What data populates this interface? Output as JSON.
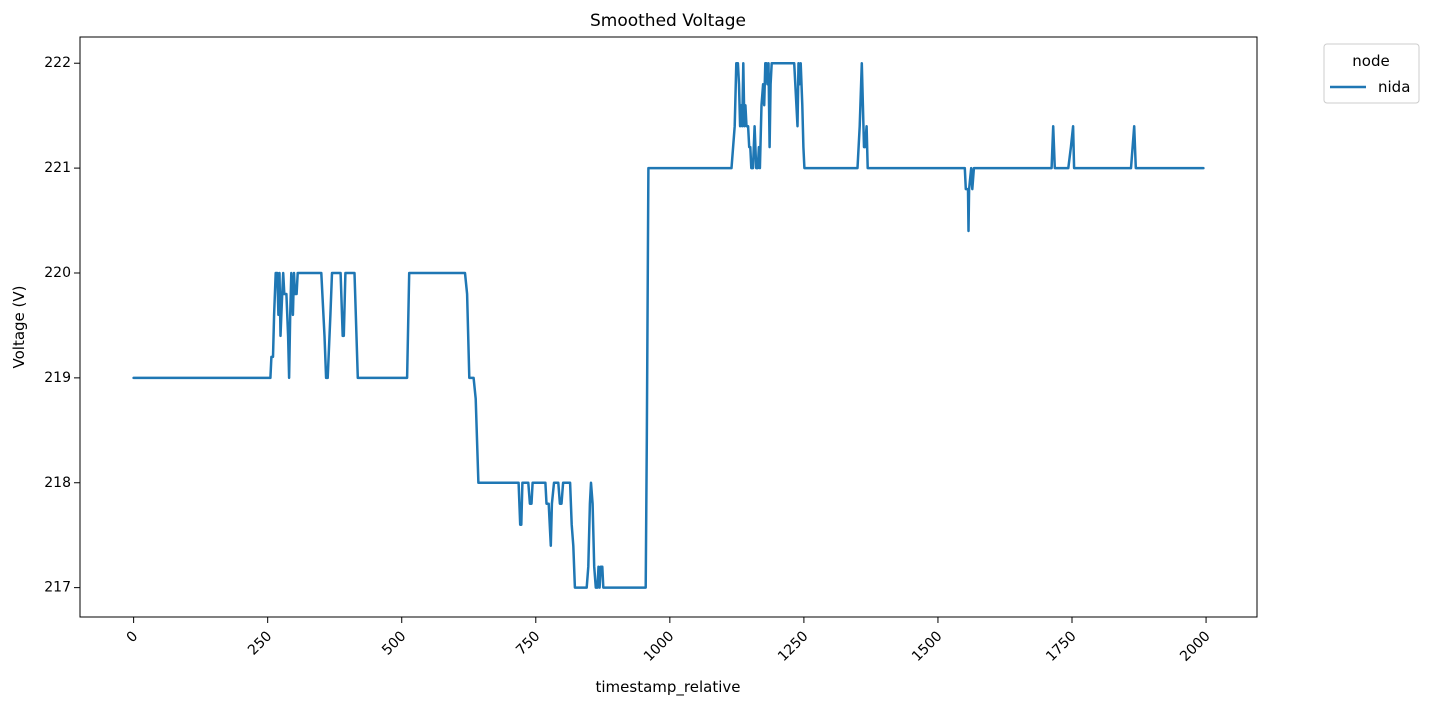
{
  "chart_data": {
    "type": "line",
    "title": "Smoothed Voltage",
    "xlabel": "timestamp_relative",
    "ylabel": "Voltage (V)",
    "xlim": [
      -100,
      2095
    ],
    "ylim": [
      216.72,
      222.25
    ],
    "xticks": [
      0,
      250,
      500,
      750,
      1000,
      1250,
      1500,
      1750,
      2000
    ],
    "yticks": [
      217,
      218,
      219,
      220,
      221,
      222
    ],
    "grid": false,
    "legend": {
      "title": "node",
      "placement": "outside-top-right"
    },
    "series": [
      {
        "name": "nida",
        "color": "#1f77b4",
        "points": [
          [
            0,
            219
          ],
          [
            255,
            219
          ],
          [
            257,
            219.2
          ],
          [
            260,
            219.2
          ],
          [
            262,
            219.6
          ],
          [
            265,
            220
          ],
          [
            268,
            220
          ],
          [
            270,
            219.6
          ],
          [
            272,
            220
          ],
          [
            274,
            219.4
          ],
          [
            277,
            219.8
          ],
          [
            279,
            220
          ],
          [
            281,
            219.8
          ],
          [
            285,
            219.8
          ],
          [
            288,
            219.4
          ],
          [
            290,
            219
          ],
          [
            292,
            219.6
          ],
          [
            294,
            220
          ],
          [
            297,
            219.6
          ],
          [
            299,
            220
          ],
          [
            301,
            219.8
          ],
          [
            304,
            219.8
          ],
          [
            306,
            220
          ],
          [
            350,
            220
          ],
          [
            356,
            219.4
          ],
          [
            359,
            219
          ],
          [
            362,
            219
          ],
          [
            367,
            219.6
          ],
          [
            370,
            220
          ],
          [
            386,
            220
          ],
          [
            390,
            219.4
          ],
          [
            392,
            219.4
          ],
          [
            395,
            220
          ],
          [
            412,
            220
          ],
          [
            418,
            219
          ],
          [
            510,
            219
          ],
          [
            514,
            220
          ],
          [
            618,
            220
          ],
          [
            622,
            219.8
          ],
          [
            626,
            219
          ],
          [
            634,
            219
          ],
          [
            638,
            218.8
          ],
          [
            643,
            218
          ],
          [
            718,
            218
          ],
          [
            721,
            217.6
          ],
          [
            723,
            217.6
          ],
          [
            725,
            218
          ],
          [
            736,
            218
          ],
          [
            739,
            217.8
          ],
          [
            742,
            217.8
          ],
          [
            744,
            218
          ],
          [
            768,
            218
          ],
          [
            770,
            217.8
          ],
          [
            774,
            217.8
          ],
          [
            778,
            217.4
          ],
          [
            780,
            217.8
          ],
          [
            784,
            218
          ],
          [
            792,
            218
          ],
          [
            795,
            217.8
          ],
          [
            798,
            217.8
          ],
          [
            801,
            218
          ],
          [
            814,
            218
          ],
          [
            817,
            217.6
          ],
          [
            820,
            217.4
          ],
          [
            823,
            217
          ],
          [
            845,
            217
          ],
          [
            848,
            217.2
          ],
          [
            851,
            217.8
          ],
          [
            853,
            218
          ],
          [
            856,
            217.8
          ],
          [
            859,
            217.2
          ],
          [
            862,
            217
          ],
          [
            865,
            217
          ],
          [
            867,
            217.2
          ],
          [
            869,
            217
          ],
          [
            871,
            217.2
          ],
          [
            874,
            217.2
          ],
          [
            876,
            217
          ],
          [
            955,
            217
          ],
          [
            957,
            218.4
          ],
          [
            960,
            221
          ],
          [
            1115,
            221
          ],
          [
            1118,
            221.2
          ],
          [
            1121,
            221.4
          ],
          [
            1124,
            222
          ],
          [
            1127,
            222
          ],
          [
            1129,
            221.8
          ],
          [
            1131,
            221.4
          ],
          [
            1133,
            221.6
          ],
          [
            1135,
            221.4
          ],
          [
            1137,
            222
          ],
          [
            1139,
            221.4
          ],
          [
            1141,
            221.6
          ],
          [
            1143,
            221.4
          ],
          [
            1146,
            221.4
          ],
          [
            1148,
            221.2
          ],
          [
            1150,
            221.2
          ],
          [
            1152,
            221
          ],
          [
            1155,
            221
          ],
          [
            1158,
            221.4
          ],
          [
            1161,
            221
          ],
          [
            1164,
            221
          ],
          [
            1166,
            221.2
          ],
          [
            1168,
            221
          ],
          [
            1171,
            221.6
          ],
          [
            1174,
            221.8
          ],
          [
            1176,
            221.6
          ],
          [
            1178,
            222
          ],
          [
            1180,
            222
          ],
          [
            1182,
            221.8
          ],
          [
            1184,
            222
          ],
          [
            1186,
            221.2
          ],
          [
            1188,
            221.8
          ],
          [
            1190,
            222
          ],
          [
            1232,
            222
          ],
          [
            1238,
            221.4
          ],
          [
            1240,
            222
          ],
          [
            1242,
            221.8
          ],
          [
            1244,
            222
          ],
          [
            1247,
            221.6
          ],
          [
            1249,
            221.2
          ],
          [
            1251,
            221
          ],
          [
            1350,
            221
          ],
          [
            1354,
            221.4
          ],
          [
            1358,
            222
          ],
          [
            1360,
            221.6
          ],
          [
            1362,
            221.2
          ],
          [
            1364,
            221.2
          ],
          [
            1367,
            221.4
          ],
          [
            1369,
            221
          ],
          [
            1550,
            221
          ],
          [
            1552,
            220.8
          ],
          [
            1556,
            220.8
          ],
          [
            1557,
            220.4
          ],
          [
            1558,
            220.8
          ],
          [
            1562,
            221
          ],
          [
            1564,
            220.8
          ],
          [
            1567,
            221
          ],
          [
            1712,
            221
          ],
          [
            1715,
            221.4
          ],
          [
            1718,
            221
          ],
          [
            1743,
            221
          ],
          [
            1748,
            221.2
          ],
          [
            1752,
            221.4
          ],
          [
            1754,
            221
          ],
          [
            1860,
            221
          ],
          [
            1863,
            221.2
          ],
          [
            1866,
            221.4
          ],
          [
            1869,
            221
          ],
          [
            1995,
            221
          ]
        ]
      }
    ]
  }
}
